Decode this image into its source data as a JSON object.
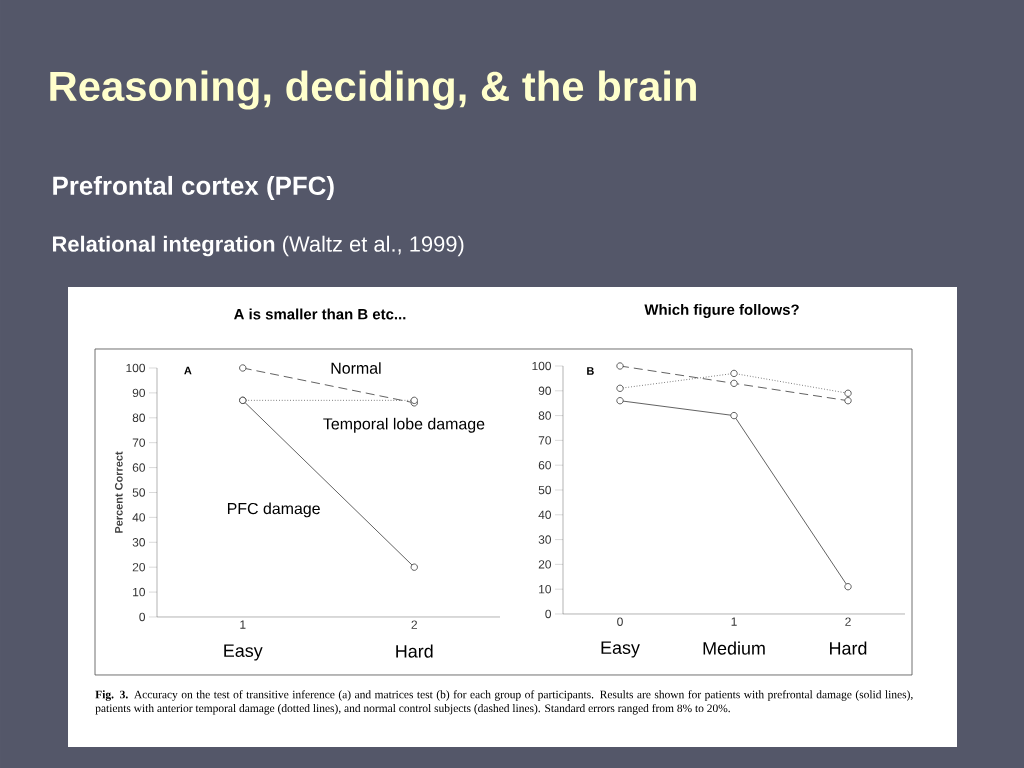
{
  "chart_data": [
    {
      "type": "line",
      "title": "A is smaller than B etc...",
      "ylabel": "Percent Correct",
      "x": [
        1,
        2
      ],
      "xlim": [
        0.5,
        2.5
      ],
      "xticks": [
        1,
        2
      ],
      "ylim": [
        0,
        100
      ],
      "yticks": [
        0,
        10,
        20,
        30,
        40,
        50,
        60,
        70,
        80,
        90,
        100
      ],
      "marker": "circle",
      "series": [
        {
          "name": "Normal",
          "color": "#3a3a3a",
          "line_style": "dashed",
          "values": [
            100,
            86
          ]
        },
        {
          "name": "Temporal lobe damage",
          "color": "#3a3a3a",
          "line_style": "dotted",
          "values": [
            87,
            87
          ]
        },
        {
          "name": "PFC damage",
          "color": "#3a3a3a",
          "line_style": "solid",
          "values": [
            87,
            20
          ]
        }
      ],
      "annotations": [
        "Reasoning, deciding, & the brain",
        "Prefrontal cortex (PFC)",
        "**Relational integration** (Waltz et al., 1999)",
        "A",
        "Easy",
        "Hard",
        "**Fig. 3.** Accuracy on the test of transitive inference (a) and matrices test (b) for each group of participants. Results are shown for patients with prefrontal damage (solid lines), patients with anterior temporal damage (dotted lines), and normal control subjects (dashed lines). Standard errors ranged from 8% to 20%."
      ]
    },
    {
      "type": "line",
      "title": "Which figure follows?",
      "x": [
        0,
        1,
        2
      ],
      "xlim": [
        -0.5,
        2.5
      ],
      "xticks": [
        0,
        1,
        2
      ],
      "ylim": [
        0,
        100
      ],
      "yticks": [
        0,
        10,
        20,
        30,
        40,
        50,
        60,
        70,
        80,
        90,
        100
      ],
      "marker": "circle",
      "series": [
        {
          "color": "#3a3a3a",
          "line_style": "dashed",
          "values": [
            100,
            93,
            86
          ]
        },
        {
          "color": "#3a3a3a",
          "line_style": "dotted",
          "values": [
            91,
            97,
            89
          ]
        },
        {
          "color": "#3a3a3a",
          "line_style": "solid",
          "values": [
            86,
            80,
            11
          ]
        }
      ],
      "annotations": [
        "B",
        "Easy",
        "Medium",
        "Hard"
      ]
    }
  ]
}
